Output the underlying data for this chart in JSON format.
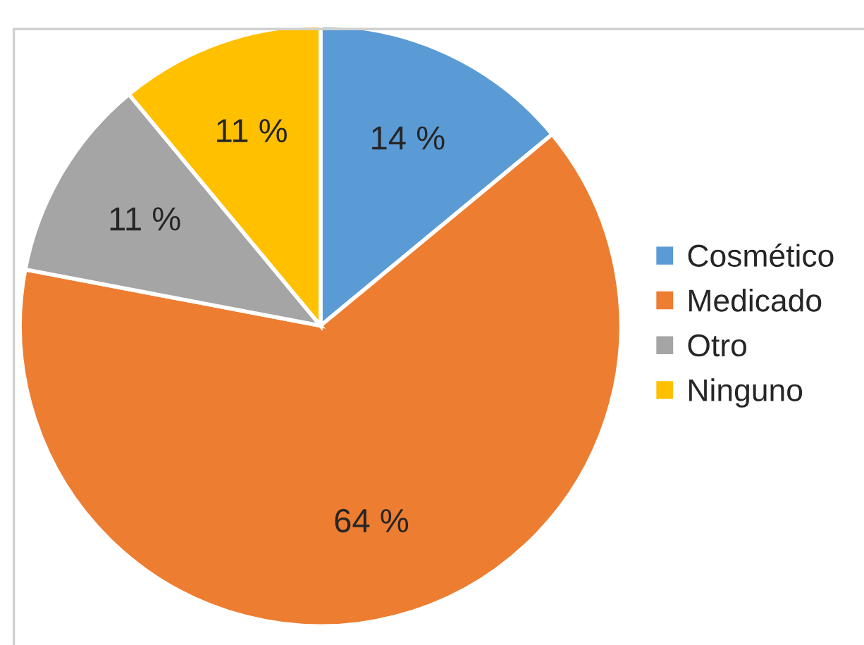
{
  "chart_data": {
    "type": "pie",
    "categories": [
      "Cosmético",
      "Medicado",
      "Otro",
      "Ninguno"
    ],
    "values": [
      14,
      64,
      11,
      11
    ],
    "value_labels": [
      "14 %",
      "64 %",
      "11 %",
      "11 %"
    ],
    "colors": [
      "#5b9bd5",
      "#ed7d31",
      "#a5a5a5",
      "#ffc000"
    ],
    "legend": "right"
  }
}
